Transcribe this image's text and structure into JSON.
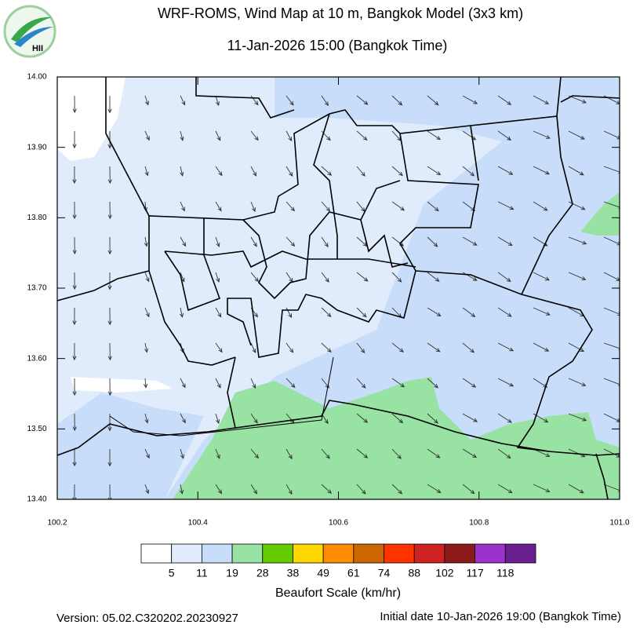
{
  "header": {
    "title": "WRF-ROMS, Wind Map at 10 m, Bangkok Model (3x3 km)",
    "subtitle": "11-Jan-2026 15:00 (Bangkok Time)",
    "logo": "HII"
  },
  "map": {
    "xlim": [
      100.2,
      101.0
    ],
    "ylim": [
      13.4,
      14.0
    ],
    "xticks": [
      100.2,
      100.4,
      100.6,
      100.8,
      {
        "value": 101,
        "label": "101.0"
      }
    ],
    "yticks": [
      {
        "value": 13.4,
        "label": "13.40"
      },
      {
        "value": 13.5,
        "label": "13.50"
      },
      {
        "value": 13.6,
        "label": "13.60"
      },
      {
        "value": 13.7,
        "label": "13.70"
      },
      {
        "value": 13.8,
        "label": "13.80"
      },
      {
        "value": 13.9,
        "label": "13.90"
      },
      {
        "value": 14,
        "label": "14.00"
      }
    ]
  },
  "legend": {
    "title": "Beaufort Scale (km/hr)",
    "colors": [
      "#ffffff",
      "#e0ecfc",
      "#c8ddfa",
      "#98e3a4",
      "#66cc00",
      "#ffd700",
      "#ff8c00",
      "#cc6600",
      "#ff3300",
      "#cc2222",
      "#8b1a1a",
      "#9933cc",
      "#6a1f8f"
    ],
    "levels": [
      5,
      11,
      19,
      28,
      38,
      49,
      61,
      74,
      88,
      102,
      117,
      118
    ]
  },
  "footer": {
    "version": "Version: 05.02.C320202.20230927",
    "initial": "Initial date 10-Jan-2026 19:00 (Bangkok Time)"
  }
}
